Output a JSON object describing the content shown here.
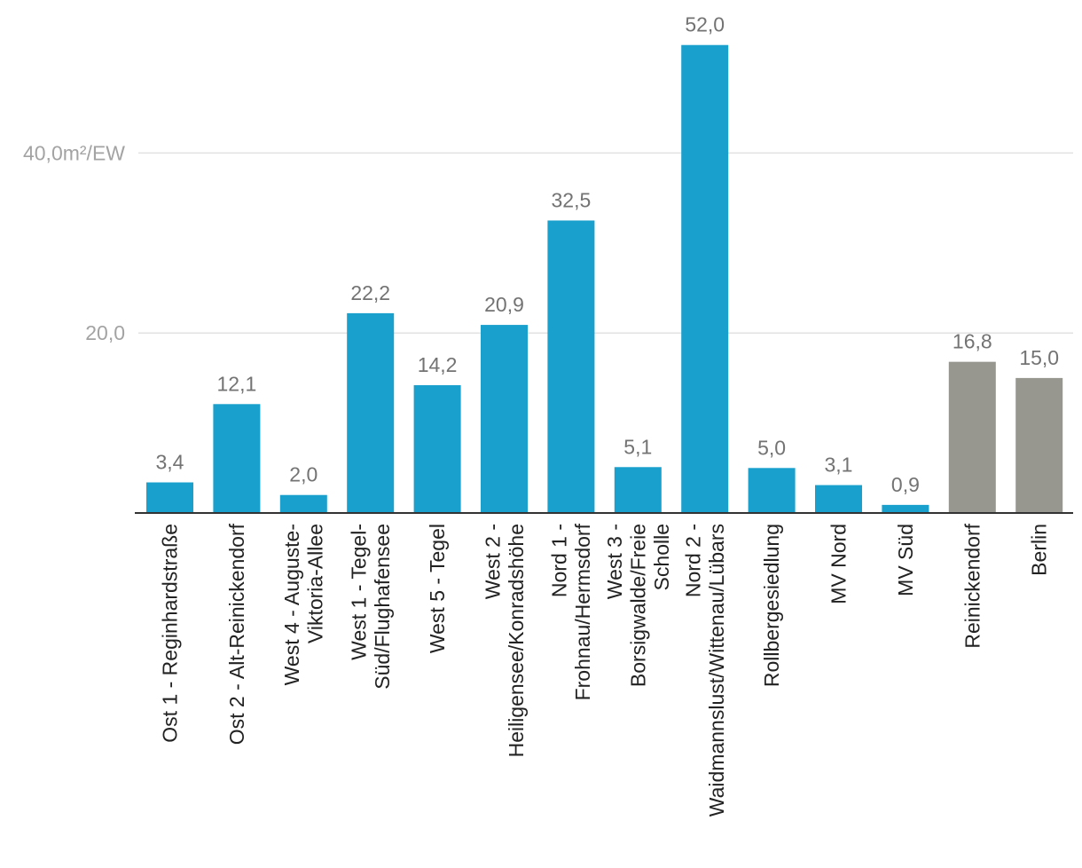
{
  "chart_data": {
    "type": "bar",
    "title": "",
    "xlabel": "",
    "ylabel": "",
    "ylim": [
      0,
      55
    ],
    "grid": true,
    "y_ticks": [
      {
        "value": 20,
        "label": "20,0"
      },
      {
        "value": 40,
        "label": "40,0m²/EW"
      }
    ],
    "categories": [
      [
        "Ost 1 - Reginhardstraße"
      ],
      [
        "Ost 2 - Alt-Reinickendorf"
      ],
      [
        "West 4 - Auguste-",
        "Viktoria-Allee"
      ],
      [
        "West 1 - Tegel-",
        "Süd/Flughafensee"
      ],
      [
        "West 5 - Tegel"
      ],
      [
        "West 2 -",
        "Heiligensee/Konradshöhe"
      ],
      [
        "Nord 1 -",
        "Frohnau/Hermsdorf"
      ],
      [
        "West 3 -",
        "Borsigwalde/Freie",
        "Scholle"
      ],
      [
        "Nord 2 -",
        "Waidmannslust/Wittenau/Lübars"
      ],
      [
        "Rollbergesiedlung"
      ],
      [
        "MV Nord"
      ],
      [
        "MV Süd"
      ],
      [
        "Reinickendorf"
      ],
      [
        "Berlin"
      ]
    ],
    "values": [
      3.4,
      12.1,
      2.0,
      22.2,
      14.2,
      20.9,
      32.5,
      5.1,
      52.0,
      5.0,
      3.1,
      0.9,
      16.8,
      15.0
    ],
    "value_labels": [
      "3,4",
      "12,1",
      "2,0",
      "22,2",
      "14,2",
      "20,9",
      "32,5",
      "5,1",
      "52,0",
      "5,0",
      "3,1",
      "0,9",
      "16,8",
      "15,0"
    ],
    "bar_colors": [
      "#19a0cd",
      "#19a0cd",
      "#19a0cd",
      "#19a0cd",
      "#19a0cd",
      "#19a0cd",
      "#19a0cd",
      "#19a0cd",
      "#19a0cd",
      "#19a0cd",
      "#19a0cd",
      "#19a0cd",
      "#979790",
      "#979790"
    ]
  }
}
